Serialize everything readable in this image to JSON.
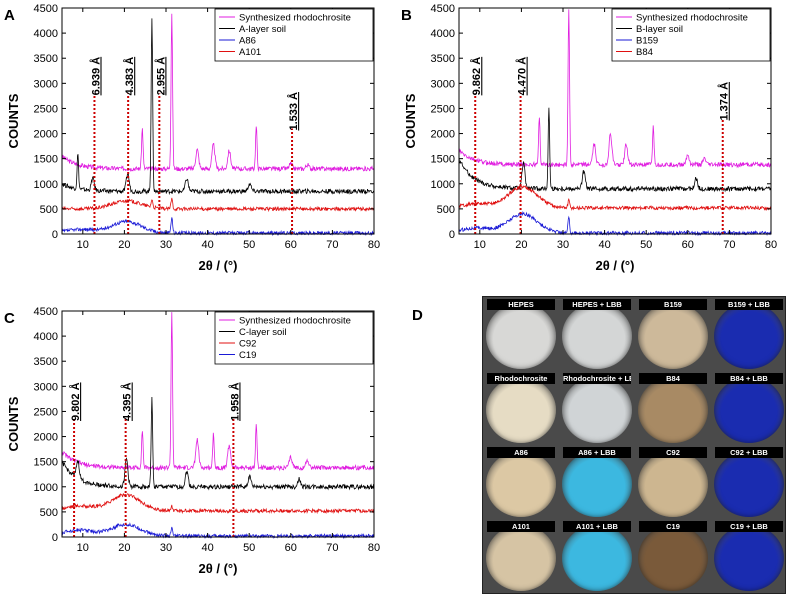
{
  "chart_data": [
    {
      "type": "line",
      "panel_label": "A",
      "xlabel": "2θ / (°)",
      "ylabel": "COUNTS",
      "xlim": [
        5,
        80
      ],
      "ylim": [
        0,
        4500
      ],
      "x_ticks": [
        10,
        20,
        30,
        40,
        50,
        60,
        70,
        80
      ],
      "y_ticks": [
        0,
        500,
        1000,
        1500,
        2000,
        2500,
        3000,
        3500,
        4000,
        4500
      ],
      "legend": [
        "Synthesized rhodochrosite",
        "A-layer soil",
        "A86",
        "A101"
      ],
      "series": [
        {
          "name": "Synthesized rhodochrosite",
          "color": "#e01ee0",
          "baseline": 1300,
          "peaks": [
            [
              24.3,
              800
            ],
            [
              31.4,
              3100
            ],
            [
              37.5,
              380
            ],
            [
              41.4,
              480
            ],
            [
              45.2,
              360
            ],
            [
              51.7,
              850
            ],
            [
              60.0,
              100
            ],
            [
              64.0,
              80
            ]
          ],
          "decay": [
            [
              5,
              250
            ]
          ]
        },
        {
          "name": "A-layer soil",
          "color": "#000000",
          "baseline": 850,
          "peaks": [
            [
              8.8,
              700
            ],
            [
              12.4,
              250
            ],
            [
              20.8,
              350
            ],
            [
              26.6,
              3450
            ],
            [
              35.0,
              250
            ],
            [
              50.1,
              150
            ]
          ],
          "decay": [
            [
              5,
              150
            ]
          ]
        },
        {
          "name": "A86",
          "color": "#1a1ad6",
          "baseline": 20,
          "peaks": [
            [
              20.5,
              230
            ],
            [
              9.5,
              70
            ],
            [
              31.4,
              300
            ]
          ],
          "decay": []
        },
        {
          "name": "A101",
          "color": "#e01010",
          "baseline": 500,
          "peaks": [
            [
              20.5,
              160
            ],
            [
              31.4,
              200
            ],
            [
              26.6,
              150
            ]
          ],
          "decay": []
        }
      ],
      "annotations": [
        {
          "label": "6.939 Å",
          "x": 12.8,
          "top": 2800
        },
        {
          "label": "4.383 Å",
          "x": 20.9,
          "top": 2800
        },
        {
          "label": "2.955 Å",
          "x": 28.4,
          "top": 2800
        },
        {
          "label": "1.533 Å",
          "x": 60.3,
          "top": 2100
        }
      ]
    },
    {
      "type": "line",
      "panel_label": "B",
      "xlabel": "2θ / (°)",
      "ylabel": "COUNTS",
      "xlim": [
        5,
        80
      ],
      "ylim": [
        0,
        4500
      ],
      "x_ticks": [
        10,
        20,
        30,
        40,
        50,
        60,
        70,
        80
      ],
      "y_ticks": [
        0,
        500,
        1000,
        1500,
        2000,
        2500,
        3000,
        3500,
        4000,
        4500
      ],
      "legend": [
        "Synthesized rhodochrosite",
        "B-layer soil",
        "B159",
        "B84"
      ],
      "series": [
        {
          "name": "Synthesized rhodochrosite",
          "color": "#e01ee0",
          "baseline": 1380,
          "peaks": [
            [
              24.3,
              950
            ],
            [
              31.4,
              3100
            ],
            [
              37.5,
              400
            ],
            [
              41.4,
              600
            ],
            [
              45.2,
              400
            ],
            [
              51.7,
              780
            ],
            [
              60.0,
              200
            ],
            [
              64.0,
              120
            ]
          ],
          "decay": [
            [
              5,
              280
            ]
          ]
        },
        {
          "name": "B-layer soil",
          "color": "#000000",
          "baseline": 900,
          "peaks": [
            [
              20.5,
              500
            ],
            [
              26.6,
              1600
            ],
            [
              35.0,
              350
            ],
            [
              62.0,
              200
            ]
          ],
          "decay": [
            [
              5,
              600
            ]
          ]
        },
        {
          "name": "B159",
          "color": "#1a1ad6",
          "baseline": 20,
          "peaks": [
            [
              20.3,
              380
            ],
            [
              9.0,
              100
            ],
            [
              31.4,
              300
            ]
          ],
          "decay": []
        },
        {
          "name": "B84",
          "color": "#e01010",
          "baseline": 520,
          "peaks": [
            [
              20.3,
              420
            ],
            [
              9.0,
              80
            ],
            [
              31.4,
              150
            ]
          ],
          "decay": []
        }
      ],
      "annotations": [
        {
          "label": "9.862 Å",
          "x": 8.9,
          "top": 2800
        },
        {
          "label": "4.470 Å",
          "x": 19.8,
          "top": 2800
        },
        {
          "label": "1.374 Å",
          "x": 68.4,
          "top": 2300
        }
      ]
    },
    {
      "type": "line",
      "panel_label": "C",
      "xlabel": "2θ / (°)",
      "ylabel": "COUNTS",
      "xlim": [
        5,
        80
      ],
      "ylim": [
        0,
        4500
      ],
      "x_ticks": [
        10,
        20,
        30,
        40,
        50,
        60,
        70,
        80
      ],
      "y_ticks": [
        0,
        500,
        1000,
        1500,
        2000,
        2500,
        3000,
        3500,
        4000,
        4500
      ],
      "legend": [
        "Synthesized rhodochrosite",
        "C-layer soil",
        "C92",
        "C19"
      ],
      "series": [
        {
          "name": "Synthesized rhodochrosite",
          "color": "#e01ee0",
          "baseline": 1380,
          "peaks": [
            [
              24.3,
              750
            ],
            [
              31.4,
              3100
            ],
            [
              37.5,
              550
            ],
            [
              41.4,
              700
            ],
            [
              45.2,
              450
            ],
            [
              51.7,
              850
            ],
            [
              60.0,
              200
            ],
            [
              64.0,
              150
            ]
          ],
          "decay": [
            [
              5,
              320
            ]
          ]
        },
        {
          "name": "C-layer soil",
          "color": "#000000",
          "baseline": 1000,
          "peaks": [
            [
              8.8,
              350
            ],
            [
              20.5,
              550
            ],
            [
              26.6,
              1750
            ],
            [
              35.0,
              300
            ],
            [
              50.1,
              200
            ],
            [
              62.0,
              150
            ]
          ],
          "decay": [
            [
              5,
              500
            ]
          ]
        },
        {
          "name": "C92",
          "color": "#e01010",
          "baseline": 520,
          "peaks": [
            [
              20.3,
              320
            ],
            [
              9.0,
              100
            ],
            [
              31.4,
              100
            ]
          ],
          "decay": []
        },
        {
          "name": "C19",
          "color": "#1a1ad6",
          "baseline": 20,
          "peaks": [
            [
              20.3,
              230
            ],
            [
              9.0,
              120
            ],
            [
              31.4,
              150
            ]
          ],
          "decay": []
        }
      ],
      "annotations": [
        {
          "label": "9.802 Å",
          "x": 7.9,
          "top": 2350
        },
        {
          "label": "4.395 Å",
          "x": 20.3,
          "top": 2350
        },
        {
          "label": "1.958 Å",
          "x": 46.2,
          "top": 2350
        }
      ]
    }
  ],
  "photo_panel": {
    "panel_label": "D",
    "wells": [
      {
        "label": "HEPES",
        "color": "#d8d8d6"
      },
      {
        "label": "HEPES + LBB",
        "color": "#d4d6d6"
      },
      {
        "label": "B159",
        "color": "#cdb99a"
      },
      {
        "label": "B159 + LBB",
        "color": "#1a2cb0"
      },
      {
        "label": "Rhodochrosite",
        "color": "#e6dcc4"
      },
      {
        "label": "Rhodochrosite + LBB",
        "color": "#d0d4d6"
      },
      {
        "label": "B84",
        "color": "#a88a64"
      },
      {
        "label": "B84 + LBB",
        "color": "#1a2cb0"
      },
      {
        "label": "A86",
        "color": "#dcc8a4"
      },
      {
        "label": "A86 + LBB",
        "color": "#3cb8e0"
      },
      {
        "label": "C92",
        "color": "#cdb690"
      },
      {
        "label": "C92 + LBB",
        "color": "#1a2cb0"
      },
      {
        "label": "A101",
        "color": "#d6c4a4"
      },
      {
        "label": "A101 + LBB",
        "color": "#3cb8e0"
      },
      {
        "label": "C19",
        "color": "#7a5a3a"
      },
      {
        "label": "C19 + LBB",
        "color": "#1a2cb0"
      }
    ]
  }
}
